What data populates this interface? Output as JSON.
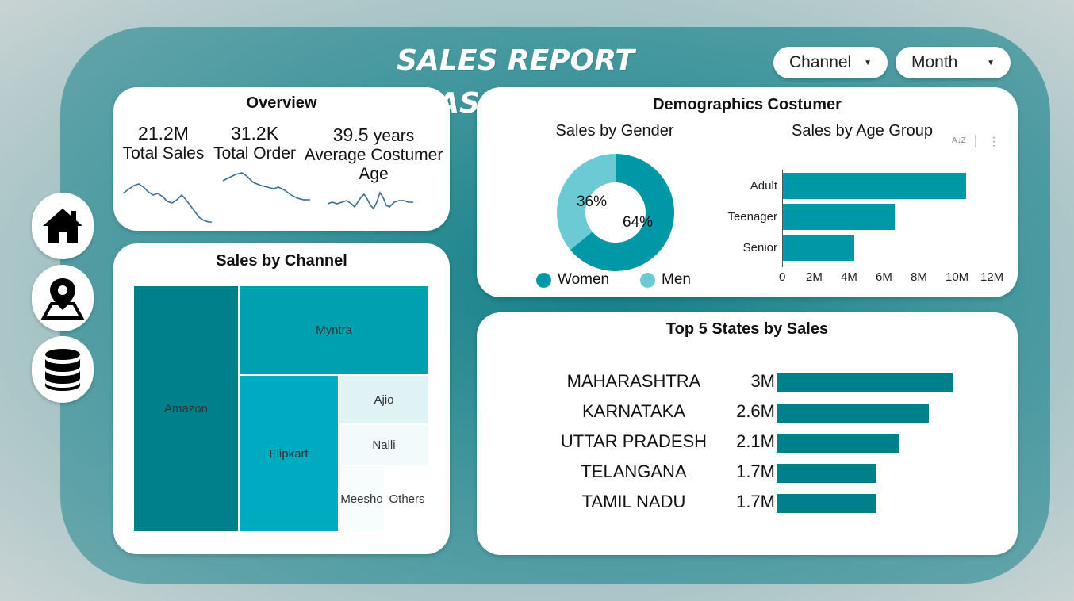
{
  "header": {
    "title": "SALES REPORT DASHBOARD",
    "slicer_channel": "Channel",
    "slicer_month": "Month"
  },
  "nav": {
    "home_icon": "home-icon",
    "map_icon": "map-pin-icon",
    "db_icon": "database-icon"
  },
  "overview": {
    "title": "Overview",
    "kpis": [
      {
        "value": "21.2M",
        "label": "Total Sales"
      },
      {
        "value": "31.2K",
        "label": "Total Order"
      },
      {
        "value": "39.5",
        "unit": "years",
        "label": "Average Costumer Age"
      }
    ]
  },
  "channel": {
    "title": "Sales by Channel",
    "segments": [
      {
        "label": "Amazon",
        "color": "#00808a"
      },
      {
        "label": "Myntra",
        "color": "#00a0b0"
      },
      {
        "label": "Flipkart",
        "color": "#00aac0"
      },
      {
        "label": "Ajio",
        "color": "#dff2f4"
      },
      {
        "label": "Nalli",
        "color": "#f2fafb"
      },
      {
        "label": "Meesho",
        "color": "#f7fcfd"
      },
      {
        "label": "Others",
        "color": "#ffffff"
      }
    ]
  },
  "demographics": {
    "title": "Demographics Costumer",
    "gender": {
      "title": "Sales by Gender",
      "slices": [
        {
          "name": "Women",
          "value": 64,
          "label": "64%",
          "color": "#0097a7"
        },
        {
          "name": "Men",
          "value": 36,
          "label": "36%",
          "color": "#6ccad4"
        }
      ]
    },
    "age": {
      "title": "Sales by Age Group",
      "sort_icon": "sort-az-icon",
      "more_icon": "more-options-icon",
      "chart_data": {
        "type": "bar",
        "orientation": "horizontal",
        "categories": [
          "Adult",
          "Teenager",
          "Senior"
        ],
        "values": [
          10.5,
          6.4,
          4.1
        ],
        "unit": "M",
        "xlim": [
          0,
          12
        ],
        "ticks": [
          "0",
          "2M",
          "4M",
          "6M",
          "8M",
          "10M",
          "12M"
        ],
        "color": "#0097a7"
      }
    }
  },
  "states": {
    "title": "Top 5 States by Sales",
    "chart_data": {
      "type": "bar",
      "orientation": "horizontal",
      "categories": [
        "MAHARASHTRA",
        "KARNATAKA",
        "UTTAR PRADESH",
        "TELANGANA",
        "TAMIL NADU"
      ],
      "values": [
        3.0,
        2.6,
        2.1,
        1.7,
        1.7
      ],
      "value_labels": [
        "3M",
        "2.6M",
        "2.1M",
        "1.7M",
        "1.7M"
      ],
      "color": "#00808a"
    }
  }
}
